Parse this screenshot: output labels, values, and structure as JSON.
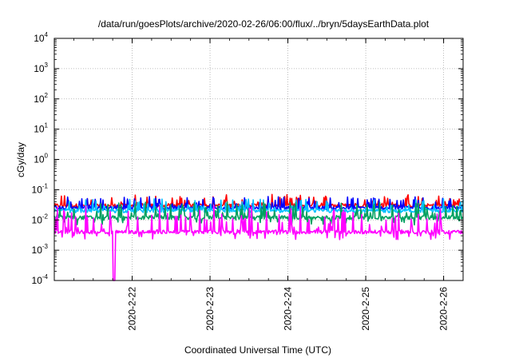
{
  "chart_data": {
    "type": "line",
    "title": "/data/run/goesPlots/archive/2020-02-26/06:00/flux/../bryn/5daysEarthData.plot",
    "xlabel": "Coordinated Universal Time (UTC)",
    "ylabel": "cGy/day",
    "yscale": "log",
    "ylim": [
      0.0001,
      10000
    ],
    "xlim": [
      "2020-02-21T00:00",
      "2020-02-26T06:00"
    ],
    "grid": true,
    "x_ticks": [
      {
        "label": "2020-2-22",
        "value": "2020-02-22T00:00"
      },
      {
        "label": "2020-2-23",
        "value": "2020-02-23T00:00"
      },
      {
        "label": "2020-2-24",
        "value": "2020-02-24T00:00"
      },
      {
        "label": "2020-2-25",
        "value": "2020-02-25T00:00"
      },
      {
        "label": "2020-2-26",
        "value": "2020-02-26T00:00"
      }
    ],
    "y_ticks": [
      {
        "mantissa": "10",
        "exp": "-4",
        "value": 0.0001
      },
      {
        "mantissa": "10",
        "exp": "-3",
        "value": 0.001
      },
      {
        "mantissa": "10",
        "exp": "-2",
        "value": 0.01
      },
      {
        "mantissa": "10",
        "exp": "-1",
        "value": 0.1
      },
      {
        "mantissa": "10",
        "exp": "0",
        "value": 1
      },
      {
        "mantissa": "10",
        "exp": "1",
        "value": 10
      },
      {
        "mantissa": "10",
        "exp": "2",
        "value": 100
      },
      {
        "mantissa": "10",
        "exp": "3",
        "value": 1000
      },
      {
        "mantissa": "10",
        "exp": "4",
        "value": 10000
      }
    ],
    "series": [
      {
        "color": "#ff0000",
        "approx_baseline": 0.03,
        "approx_peak": 0.07
      },
      {
        "color": "#0000ff",
        "approx_baseline": 0.025,
        "approx_peak": 0.06
      },
      {
        "color": "#00c0ff",
        "approx_baseline": 0.02,
        "approx_peak": 0.05
      },
      {
        "color": "#00a060",
        "approx_baseline": 0.012,
        "approx_peak": 0.04
      },
      {
        "color": "#ff00ff",
        "approx_baseline": 0.004,
        "approx_peak": 0.03,
        "dropout": {
          "x": "2020-02-21T18:30",
          "y": 0.0001
        }
      }
    ]
  }
}
